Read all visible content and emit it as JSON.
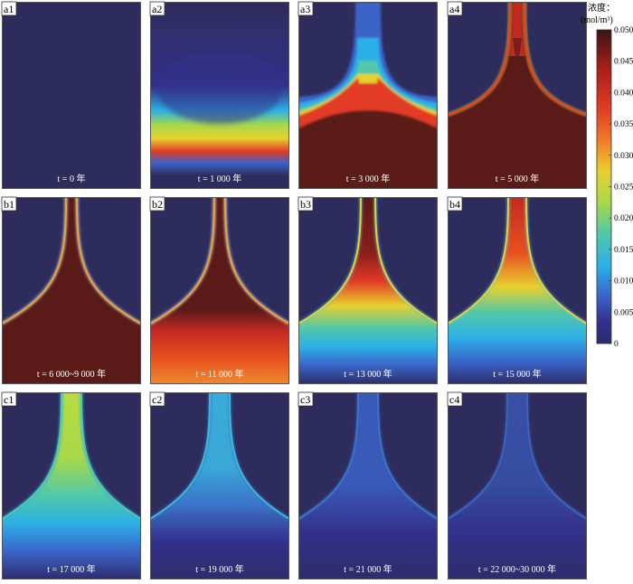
{
  "panels": [
    {
      "id": "a1",
      "time": "t = 0 年"
    },
    {
      "id": "a2",
      "time": "t = 1 000 年"
    },
    {
      "id": "a3",
      "time": "t = 3 000 年"
    },
    {
      "id": "a4",
      "time": "t = 5 000 年"
    },
    {
      "id": "b1",
      "time": "t = 6 000~9 000 年"
    },
    {
      "id": "b2",
      "time": "t = 11 000 年"
    },
    {
      "id": "b3",
      "time": "t = 13 000 年"
    },
    {
      "id": "b4",
      "time": "t = 15 000 年"
    },
    {
      "id": "c1",
      "time": "t = 17 000 年"
    },
    {
      "id": "c2",
      "time": "t = 19 000 年"
    },
    {
      "id": "c3",
      "time": "t = 21 000 年"
    },
    {
      "id": "c4",
      "time": "t = 22 000~30 000 年"
    }
  ],
  "colorbar": {
    "title_line1": "浓度：",
    "title_line2": "(mol/m³)",
    "ticks": [
      "0.050",
      "0.045",
      "0.040",
      "0.035",
      "0.030",
      "0.025",
      "0.020",
      "0.015",
      "0.010",
      "0.005",
      "0"
    ],
    "colors": [
      "#3a1414",
      "#a51f1a",
      "#e23a25",
      "#ee7a2a",
      "#e8d02e",
      "#a8d848",
      "#52c8a8",
      "#2cb0e6",
      "#3a64c8",
      "#33308a",
      "#2a2a6c"
    ]
  }
}
